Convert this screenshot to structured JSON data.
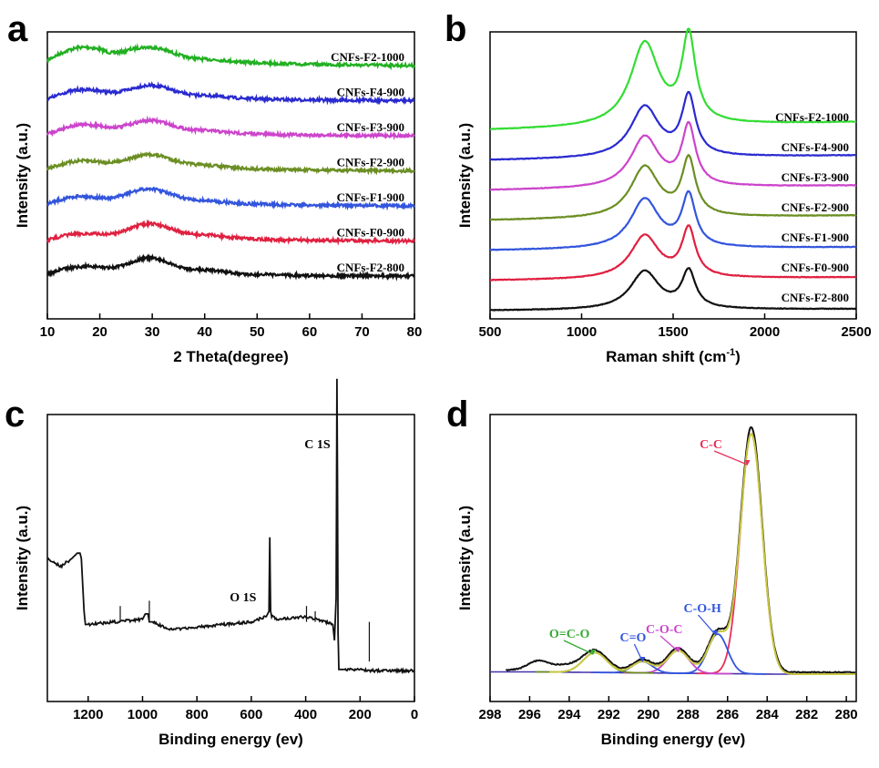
{
  "panels": [
    {
      "letter": "a",
      "chart_data": {
        "type": "line",
        "xlabel": "2 Theta(degree)",
        "ylabel": "Intensity (a.u.)",
        "xlim": [
          10,
          80
        ],
        "xticks": [
          10,
          20,
          30,
          40,
          50,
          60,
          70,
          80
        ],
        "yticks_shown": false,
        "x": [
          10,
          12,
          14,
          16,
          18,
          20,
          22,
          24,
          26,
          28,
          30,
          32,
          34,
          36,
          38,
          40,
          42,
          44,
          46,
          48,
          50,
          55,
          60,
          65,
          70,
          75,
          80
        ],
        "series": [
          {
            "name": "CNFs-F2-1000",
            "color": "#22b022",
            "offset": 6,
            "values": [
              0.3,
              0.6,
              0.85,
              1.0,
              1.0,
              0.9,
              0.7,
              0.75,
              0.9,
              1.0,
              1.0,
              0.9,
              0.7,
              0.5,
              0.4,
              0.35,
              0.32,
              0.28,
              0.22,
              0.18,
              0.15,
              0.1,
              0.07,
              0.05,
              0.03,
              0.02,
              0.0
            ]
          },
          {
            "name": "CNFs-F4-900",
            "color": "#2a2ad0",
            "offset": 5,
            "values": [
              0.1,
              0.3,
              0.5,
              0.6,
              0.6,
              0.55,
              0.45,
              0.5,
              0.65,
              0.8,
              0.85,
              0.75,
              0.55,
              0.4,
              0.3,
              0.3,
              0.25,
              0.2,
              0.15,
              0.12,
              0.1,
              0.06,
              0.04,
              0.03,
              0.02,
              0.01,
              0.0
            ]
          },
          {
            "name": "CNFs-F3-900",
            "color": "#cc44cc",
            "offset": 4,
            "values": [
              0.1,
              0.3,
              0.5,
              0.6,
              0.6,
              0.55,
              0.45,
              0.5,
              0.65,
              0.8,
              0.85,
              0.75,
              0.55,
              0.4,
              0.32,
              0.3,
              0.25,
              0.2,
              0.15,
              0.12,
              0.1,
              0.06,
              0.04,
              0.03,
              0.02,
              0.01,
              0.0
            ]
          },
          {
            "name": "CNFs-F2-900",
            "color": "#6b8e23",
            "offset": 3,
            "values": [
              0.1,
              0.3,
              0.45,
              0.55,
              0.55,
              0.5,
              0.45,
              0.55,
              0.7,
              0.85,
              0.9,
              0.8,
              0.6,
              0.45,
              0.35,
              0.32,
              0.28,
              0.22,
              0.16,
              0.12,
              0.1,
              0.06,
              0.04,
              0.03,
              0.02,
              0.01,
              0.0
            ]
          },
          {
            "name": "CNFs-F1-900",
            "color": "#3355dd",
            "offset": 2,
            "values": [
              0.1,
              0.3,
              0.45,
              0.55,
              0.5,
              0.45,
              0.42,
              0.55,
              0.75,
              0.9,
              0.95,
              0.8,
              0.6,
              0.42,
              0.32,
              0.3,
              0.25,
              0.2,
              0.15,
              0.12,
              0.1,
              0.06,
              0.04,
              0.03,
              0.02,
              0.01,
              0.0
            ]
          },
          {
            "name": "CNFs-F0-900",
            "color": "#e02040",
            "offset": 1,
            "values": [
              0.05,
              0.2,
              0.35,
              0.4,
              0.4,
              0.38,
              0.38,
              0.5,
              0.7,
              0.9,
              0.95,
              0.85,
              0.62,
              0.45,
              0.35,
              0.35,
              0.3,
              0.22,
              0.16,
              0.12,
              0.1,
              0.06,
              0.04,
              0.03,
              0.02,
              0.01,
              0.0
            ]
          },
          {
            "name": "CNFs-F2-800",
            "color": "#111111",
            "offset": 0,
            "values": [
              0.1,
              0.3,
              0.45,
              0.5,
              0.55,
              0.5,
              0.45,
              0.55,
              0.75,
              0.95,
              1.0,
              0.85,
              0.6,
              0.45,
              0.35,
              0.35,
              0.3,
              0.22,
              0.15,
              0.1,
              0.08,
              0.05,
              0.03,
              0.02,
              0.01,
              0.0,
              0.0
            ]
          }
        ]
      }
    },
    {
      "letter": "b",
      "chart_data": {
        "type": "line",
        "xlabel": "Raman shift (cm",
        "xlabel_sup": "-1",
        "xlabel_end": ")",
        "ylabel": "Intensity (a.u.)",
        "xlim": [
          500,
          2500
        ],
        "xticks": [
          500,
          1000,
          1500,
          2000,
          2500
        ],
        "yticks_shown": false,
        "peaks": {
          "D": 1345,
          "G": 1585
        },
        "series": [
          {
            "name": "CNFs-F2-1000",
            "color": "#33dd33",
            "offset": 6,
            "d_height": 2.6,
            "g_height": 2.7,
            "tilt": 0.25
          },
          {
            "name": "CNFs-F4-900",
            "color": "#2a2ad0",
            "offset": 5,
            "d_height": 1.6,
            "g_height": 1.85,
            "tilt": 0.15
          },
          {
            "name": "CNFs-F3-900",
            "color": "#cc44cc",
            "offset": 4,
            "d_height": 1.6,
            "g_height": 1.85,
            "tilt": 0.15
          },
          {
            "name": "CNFs-F2-900",
            "color": "#6b8e23",
            "offset": 3,
            "d_height": 1.6,
            "g_height": 1.75,
            "tilt": 0.15
          },
          {
            "name": "CNFs-F1-900",
            "color": "#3355dd",
            "offset": 2,
            "d_height": 1.55,
            "g_height": 1.6,
            "tilt": 0.1
          },
          {
            "name": "CNFs-F0-900",
            "color": "#e02040",
            "offset": 1,
            "d_height": 1.35,
            "g_height": 1.5,
            "tilt": 0.1
          },
          {
            "name": "CNFs-F2-800",
            "color": "#111111",
            "offset": 0,
            "d_height": 1.2,
            "g_height": 1.15,
            "tilt": 0.05
          }
        ]
      }
    },
    {
      "letter": "c",
      "chart_data": {
        "type": "line",
        "xlabel": "Binding energy (ev)",
        "ylabel": "Intensity (a.u.)",
        "xlim": [
          1350,
          0
        ],
        "xticks": [
          1200,
          1000,
          800,
          600,
          400,
          200,
          0
        ],
        "yticks_shown": false,
        "annotations": [
          {
            "label": "C 1S",
            "x": 284
          },
          {
            "label": "O 1S",
            "x": 532
          }
        ],
        "series": [
          {
            "name": "",
            "color": "#111111",
            "x": [
              1350,
              1300,
              1260,
              1240,
              1230,
              1225,
              1215,
              1210,
              1200,
              1100,
              1000,
              990,
              980,
              975,
              960,
              900,
              800,
              700,
              600,
              545,
              535,
              532,
              529,
              525,
              500,
              400,
              330,
              300,
              294,
              288,
              285,
              283,
              281,
              278,
              275,
              260,
              200,
              150,
              100,
              0
            ],
            "values": [
              0.3,
              0.27,
              0.3,
              0.32,
              0.32,
              0.3,
              0.1,
              0.05,
              0.05,
              0.06,
              0.07,
              0.09,
              0.09,
              0.06,
              0.06,
              0.03,
              0.04,
              0.05,
              0.06,
              0.08,
              0.1,
              0.38,
              0.1,
              0.08,
              0.07,
              0.08,
              0.06,
              0.05,
              -0.01,
              0.15,
              0.98,
              0.6,
              0.02,
              -0.12,
              -0.12,
              -0.12,
              -0.12,
              -0.125,
              -0.125,
              -0.125
            ]
          }
        ]
      }
    },
    {
      "letter": "d",
      "chart_data": {
        "type": "line",
        "xlabel": "Binding energy (ev)",
        "ylabel": "Intensity (a.u.)",
        "xlim": [
          298,
          279.5
        ],
        "xticks": [
          298,
          296,
          294,
          292,
          290,
          288,
          286,
          284,
          282,
          280
        ],
        "yticks_shown": false,
        "components": [
          {
            "name": "C-C",
            "center": 284.8,
            "height": 0.85,
            "width": 0.55,
            "color": "#e8305a",
            "label_color": "#e8305a"
          },
          {
            "name": "C-O-H",
            "center": 286.5,
            "height": 0.14,
            "width": 0.5,
            "color": "#3355dd",
            "label_color": "#3355dd"
          },
          {
            "name": "C-O-C",
            "center": 288.5,
            "height": 0.08,
            "width": 0.55,
            "color": "#cc44cc",
            "label_color": "#cc44cc"
          },
          {
            "name": "C=O",
            "center": 290.3,
            "height": 0.04,
            "width": 0.5,
            "color": "#3355dd",
            "label_color": "#3355dd"
          },
          {
            "name": "O=C-O",
            "center": 292.7,
            "height": 0.07,
            "width": 0.6,
            "color": "#6b8e23",
            "label_color": "#33aa33"
          }
        ],
        "background_color": "#4433aa",
        "raw_color": "#111111",
        "fit_color": "#c8c840"
      }
    }
  ]
}
